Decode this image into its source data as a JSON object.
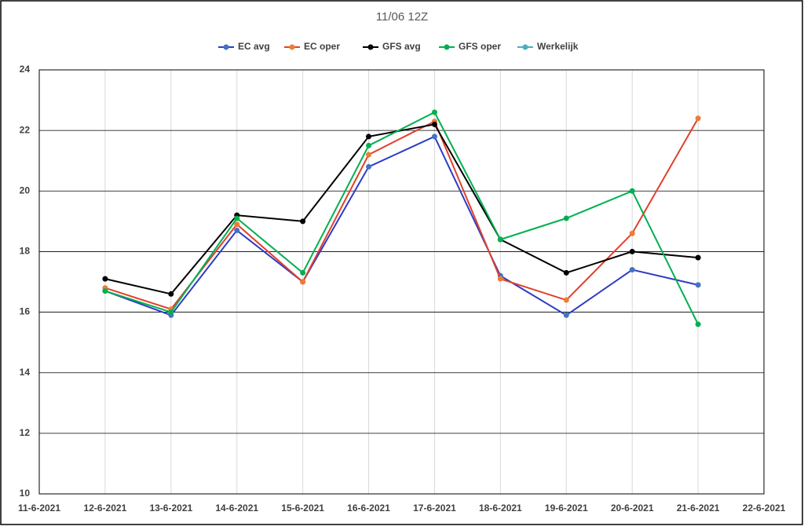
{
  "chart_data": {
    "type": "line",
    "title": "11/06 12Z",
    "categories": [
      "11-6-2021",
      "12-6-2021",
      "13-6-2021",
      "14-6-2021",
      "15-6-2021",
      "16-6-2021",
      "17-6-2021",
      "18-6-2021",
      "19-6-2021",
      "20-6-2021",
      "21-6-2021",
      "22-6-2021"
    ],
    "series": [
      {
        "name": "EC avg",
        "color": "#2e3bc4",
        "marker_color": "#4472c4",
        "values": [
          null,
          16.7,
          15.9,
          18.7,
          17.0,
          20.8,
          21.8,
          17.2,
          15.9,
          17.4,
          16.9,
          null
        ]
      },
      {
        "name": "EC oper",
        "color": "#e0402c",
        "marker_color": "#ed7d31",
        "values": [
          null,
          16.8,
          16.1,
          18.9,
          17.0,
          21.2,
          22.3,
          17.1,
          16.4,
          18.6,
          22.4,
          null
        ]
      },
      {
        "name": "GFS avg",
        "color": "#000000",
        "marker_color": "#000000",
        "values": [
          null,
          17.1,
          16.6,
          19.2,
          19.0,
          21.8,
          22.2,
          18.4,
          17.3,
          18.0,
          17.8,
          null
        ]
      },
      {
        "name": "GFS oper",
        "color": "#00b050",
        "marker_color": "#00b050",
        "values": [
          null,
          16.7,
          16.0,
          19.1,
          17.3,
          21.5,
          22.6,
          18.4,
          19.1,
          20.0,
          15.6,
          null
        ]
      },
      {
        "name": "Werkelijk",
        "color": "#4bacc6",
        "marker_color": "#4bacc6",
        "values": [
          null,
          null,
          null,
          null,
          null,
          null,
          null,
          null,
          null,
          null,
          null,
          null
        ]
      }
    ],
    "ylim": [
      10,
      24
    ],
    "yticks": [
      10,
      12,
      14,
      16,
      18,
      20,
      22,
      24
    ],
    "grid": true,
    "legend": "top"
  }
}
